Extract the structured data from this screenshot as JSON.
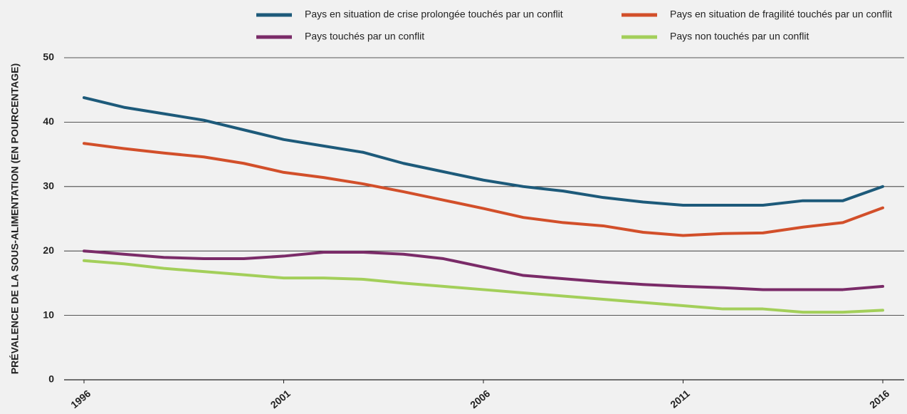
{
  "chart_data": {
    "type": "line",
    "ylabel": "PRÉVALENCE DE LA SOUS-ALIMENTATION (EN POURCENTAGE)",
    "x": [
      1996,
      1997,
      1998,
      1999,
      2000,
      2001,
      2002,
      2003,
      2004,
      2005,
      2006,
      2007,
      2008,
      2009,
      2010,
      2011,
      2012,
      2013,
      2014,
      2015,
      2016
    ],
    "xlim": [
      1996,
      2016
    ],
    "xticks": [
      1996,
      2001,
      2006,
      2011,
      2016
    ],
    "ylim": [
      0,
      50
    ],
    "yticks": [
      0,
      10,
      20,
      30,
      40,
      50
    ],
    "grid": true,
    "series": [
      {
        "name": "Pays en situation de crise prolongée touchés par un conflit",
        "color": "#1d5a7a",
        "values": [
          43.8,
          42.3,
          41.3,
          40.3,
          38.8,
          37.3,
          36.3,
          35.3,
          33.6,
          32.3,
          31.0,
          30.0,
          29.3,
          28.3,
          27.6,
          27.1,
          27.1,
          27.1,
          27.8,
          27.8,
          30.0
        ]
      },
      {
        "name": "Pays en situation de fragilité touchés par un conflit",
        "color": "#d24f2a",
        "values": [
          36.7,
          35.9,
          35.2,
          34.6,
          33.6,
          32.2,
          31.4,
          30.4,
          29.2,
          27.9,
          26.6,
          25.2,
          24.4,
          23.9,
          22.9,
          22.4,
          22.7,
          22.8,
          23.7,
          24.4,
          26.7
        ]
      },
      {
        "name": "Pays touchés par un conflit",
        "color": "#7a2b68",
        "values": [
          20.0,
          19.5,
          19.0,
          18.8,
          18.8,
          19.2,
          19.8,
          19.8,
          19.5,
          18.8,
          17.5,
          16.2,
          15.7,
          15.2,
          14.8,
          14.5,
          14.3,
          14.0,
          14.0,
          14.0,
          14.5
        ]
      },
      {
        "name": "Pays non touchés par un conflit",
        "color": "#a3cf5a",
        "values": [
          18.5,
          18.0,
          17.3,
          16.8,
          16.3,
          15.8,
          15.8,
          15.6,
          15.0,
          14.5,
          14.0,
          13.5,
          13.0,
          12.5,
          12.0,
          11.5,
          11.0,
          11.0,
          10.5,
          10.5,
          10.8
        ]
      }
    ]
  }
}
